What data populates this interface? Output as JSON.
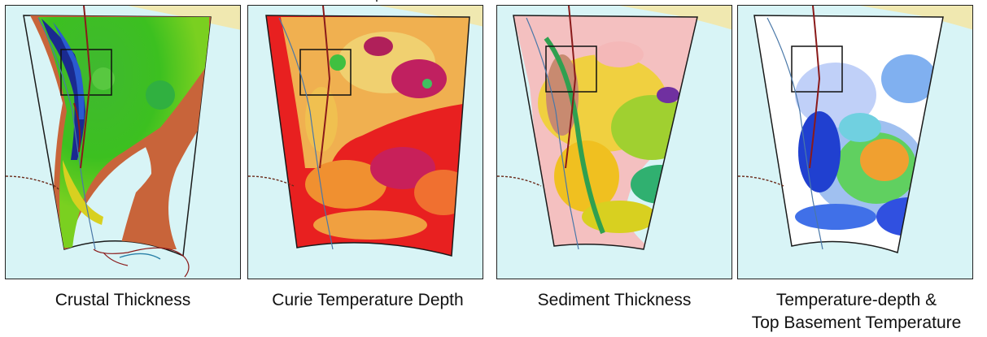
{
  "panels": [
    {
      "caption": "Crustal Thickness",
      "theme": "crustal"
    },
    {
      "caption": "Curie Temperature Depth",
      "theme": "curie"
    },
    {
      "caption": "Sediment Thickness",
      "theme": "sediment"
    },
    {
      "caption_line1": "Temperature-depth &",
      "caption_line2": "Top Basement Temperature",
      "theme": "temperature"
    }
  ],
  "colors": {
    "ocean": "#d8f4f6",
    "land_north": "#f0e8b0",
    "outline": "#1a1a1a",
    "fault_red": "#8a1a1a",
    "coast_blue": "#4a78a8"
  }
}
